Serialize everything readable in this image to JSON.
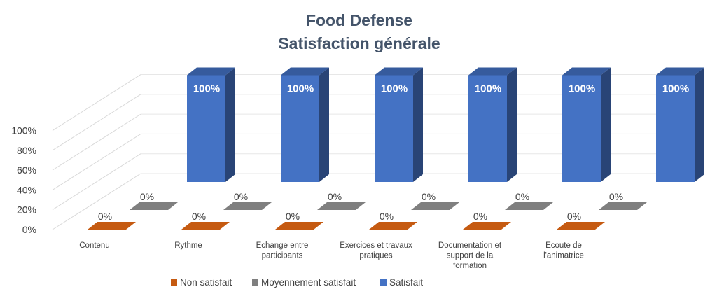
{
  "chart_data": {
    "type": "bar",
    "subtype": "3d-column",
    "title": [
      "Food Defense",
      "Satisfaction générale"
    ],
    "categories": [
      [
        "Contenu"
      ],
      [
        "Rythme"
      ],
      [
        "Echange entre",
        "participants"
      ],
      [
        "Exercices et travaux",
        "pratiques"
      ],
      [
        "Documentation et",
        "support de la",
        "formation"
      ],
      [
        "Ecoute de",
        "l'animatrice"
      ]
    ],
    "series": [
      {
        "name": "Non satisfait",
        "color": "#c55a11",
        "values": [
          0,
          0,
          0,
          0,
          0,
          0
        ]
      },
      {
        "name": "Moyennement satisfait",
        "color": "#7f7f7f",
        "values": [
          0,
          0,
          0,
          0,
          0,
          0
        ]
      },
      {
        "name": "Satisfait",
        "color": "#4472c4",
        "values": [
          100,
          100,
          100,
          100,
          100,
          100
        ]
      }
    ],
    "data_labels": [
      [
        "0%",
        "0%",
        "0%",
        "0%",
        "0%",
        "0%"
      ],
      [
        "0%",
        "0%",
        "0%",
        "0%",
        "0%",
        "0%"
      ],
      [
        "100%",
        "100%",
        "100%",
        "100%",
        "100%",
        "100%"
      ]
    ],
    "y_ticks": [
      "0%",
      "20%",
      "40%",
      "60%",
      "80%",
      "100%"
    ],
    "ylim": [
      0,
      100
    ],
    "grid": true,
    "legend_position": "bottom"
  }
}
